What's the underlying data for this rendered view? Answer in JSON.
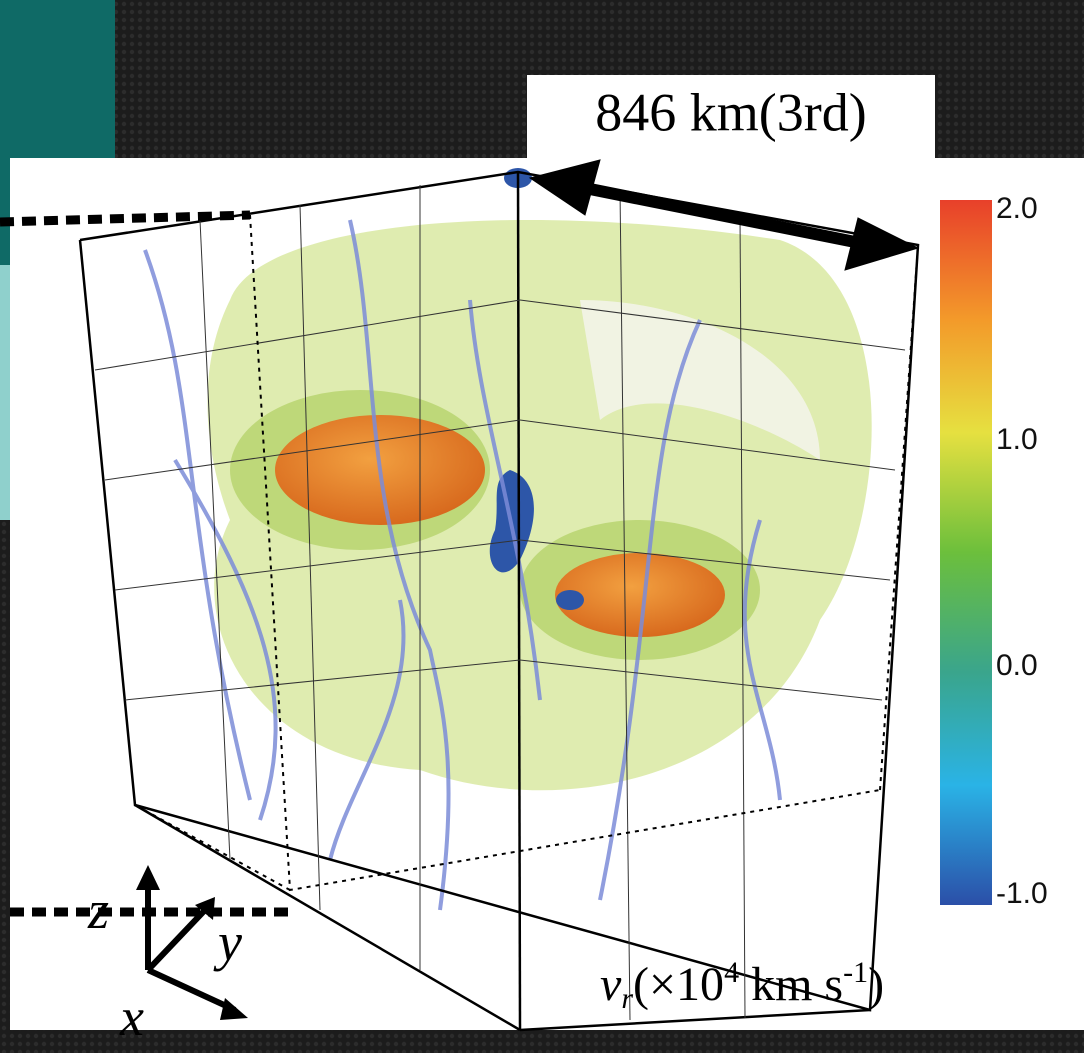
{
  "figure": {
    "scale_label": "846 km(3rd)",
    "colorbar": {
      "ticks": [
        "2.0",
        "1.0",
        "0.0",
        "-1.0"
      ],
      "label": {
        "symbol": "v",
        "subscript": "r",
        "before_power": "(×10",
        "power": "4",
        "unit": " km s",
        "unit_power": "-1",
        "close": ")"
      }
    },
    "axes": {
      "z": "z",
      "y": "y",
      "x": "x"
    }
  }
}
